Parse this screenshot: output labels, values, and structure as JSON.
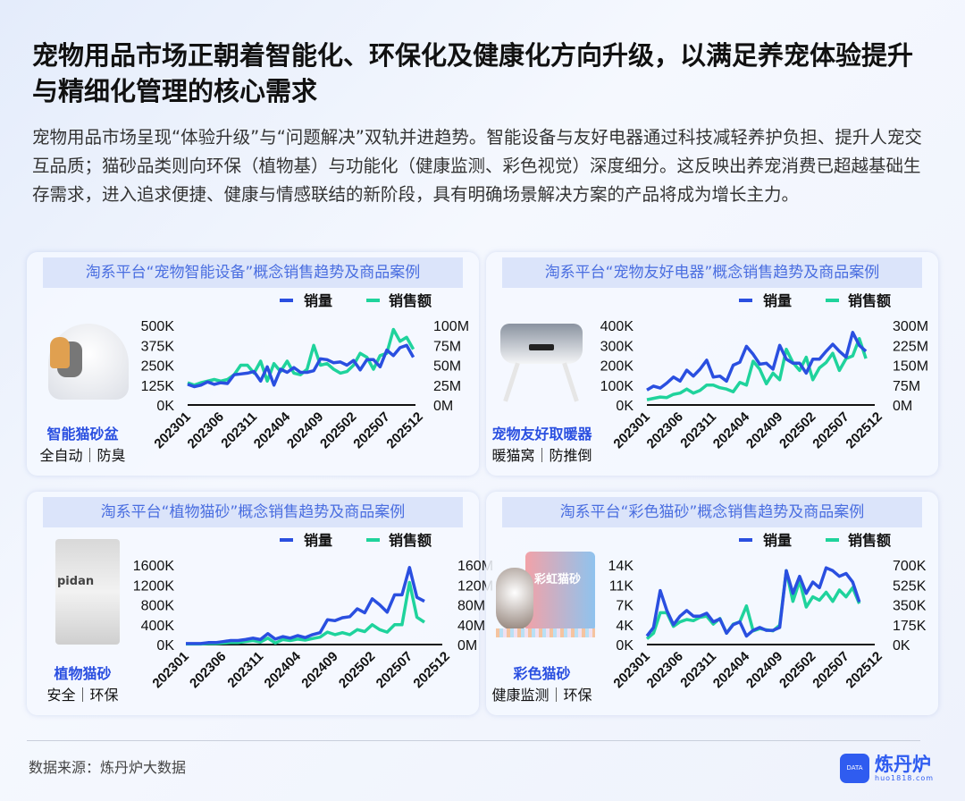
{
  "headline": "宠物用品市场正朝着智能化、环保化及健康化方向升级，以满足养宠体验提升与精细化管理的核心需求",
  "summary": "宠物用品市场呈现“体验升级”与“问题解决”双轨并进趋势。智能设备与友好电器通过科技减轻养护负担、提升人宠交互品质；猫砂品类则向环保（植物基）与功能化（健康监测、彩色视觉）深度细分。这反映出养宠消费已超越基础生存需求，进入追求便捷、健康与情感联结的新阶段，具有明确场景解决方案的产品将成为增长主力。",
  "footer": {
    "source": "数据来源：炼丹炉大数据",
    "logo_name": "炼丹炉",
    "logo_url": "huo1818.com",
    "logo_badge": "DATA"
  },
  "colors": {
    "volume": "#2a4fe0",
    "amount": "#1fd39c"
  },
  "chart_data": [
    {
      "type": "line",
      "title": "淘系平台“宠物智能设备”概念销售趋势及商品案例",
      "product": {
        "name": "智能猫砂盆",
        "tags": "全自动｜防臭"
      },
      "legend": [
        "销量",
        "销售额"
      ],
      "x_ticks": [
        "202301",
        "202306",
        "202311",
        "202404",
        "202409",
        "202502",
        "202507",
        "202512"
      ],
      "left_ticks": [
        "0K",
        "125K",
        "250K",
        "375K",
        "500K"
      ],
      "right_ticks": [
        "0M",
        "25M",
        "50M",
        "75M",
        "100M"
      ],
      "ylim_left": [
        0,
        500
      ],
      "ylim_right": [
        0,
        100
      ],
      "series": [
        {
          "name": "销量",
          "unit": "K",
          "values": [
            130,
            115,
            125,
            145,
            130,
            140,
            135,
            190,
            195,
            200,
            210,
            150,
            240,
            125,
            225,
            205,
            235,
            205,
            205,
            215,
            290,
            285,
            265,
            270,
            250,
            280,
            220,
            285,
            285,
            240,
            345,
            310,
            360,
            375,
            300
          ]
        },
        {
          "name": "销售额",
          "unit": "M",
          "values": [
            28,
            25,
            28,
            30,
            32,
            30,
            32,
            38,
            50,
            50,
            40,
            55,
            30,
            52,
            42,
            55,
            40,
            38,
            45,
            75,
            50,
            52,
            45,
            40,
            42,
            50,
            65,
            60,
            45,
            62,
            65,
            95,
            80,
            85,
            70
          ]
        }
      ]
    },
    {
      "type": "line",
      "title": "淘系平台“宠物友好电器”概念销售趋势及商品案例",
      "product": {
        "name": "宠物友好取暖器",
        "tags": "暖猫窝｜防推倒"
      },
      "legend": [
        "销量",
        "销售额"
      ],
      "x_ticks": [
        "202301",
        "202306",
        "202311",
        "202404",
        "202409",
        "202502",
        "202507",
        "202512"
      ],
      "left_ticks": [
        "0K",
        "100K",
        "200K",
        "300K",
        "400K"
      ],
      "right_ticks": [
        "0M",
        "75M",
        "150M",
        "225M",
        "300M"
      ],
      "ylim_left": [
        0,
        400
      ],
      "ylim_right": [
        0,
        300
      ],
      "series": [
        {
          "name": "销量",
          "unit": "K",
          "values": [
            75,
            95,
            85,
            110,
            140,
            120,
            175,
            145,
            180,
            225,
            140,
            145,
            120,
            200,
            215,
            295,
            255,
            205,
            210,
            180,
            300,
            230,
            210,
            210,
            160,
            230,
            230,
            270,
            305,
            270,
            240,
            365,
            300,
            270
          ]
        },
        {
          "name": "销售额",
          "unit": "M",
          "values": [
            20,
            25,
            30,
            28,
            40,
            45,
            60,
            45,
            55,
            75,
            75,
            65,
            60,
            50,
            85,
            75,
            165,
            135,
            80,
            120,
            95,
            210,
            160,
            130,
            180,
            95,
            140,
            160,
            195,
            130,
            175,
            185,
            250,
            175
          ]
        }
      ]
    },
    {
      "type": "line",
      "title": "淘系平台“植物猫砂”概念销售趋势及商品案例",
      "product": {
        "name": "植物猫砂",
        "tags": "安全｜环保"
      },
      "legend": [
        "销量",
        "销售额"
      ],
      "x_ticks": [
        "202301",
        "202306",
        "202311",
        "202404",
        "202409",
        "202502",
        "202507",
        "202512"
      ],
      "left_ticks": [
        "0K",
        "400K",
        "800K",
        "1200K",
        "1600K"
      ],
      "right_ticks": [
        "0M",
        "40M",
        "80M",
        "120M",
        "160M"
      ],
      "ylim_left": [
        0,
        1600
      ],
      "ylim_right": [
        0,
        160
      ],
      "series": [
        {
          "name": "销量",
          "unit": "K",
          "values": [
            20,
            20,
            20,
            40,
            40,
            60,
            80,
            80,
            100,
            130,
            100,
            220,
            110,
            160,
            130,
            180,
            140,
            200,
            240,
            500,
            480,
            540,
            560,
            720,
            640,
            920,
            800,
            650,
            1000,
            1000,
            1550,
            950,
            870
          ]
        },
        {
          "name": "销售额",
          "unit": "M",
          "values": [
            1,
            1,
            1,
            2,
            2,
            3,
            4,
            4,
            6,
            8,
            5,
            13,
            3,
            10,
            8,
            11,
            9,
            12,
            15,
            25,
            20,
            24,
            20,
            30,
            26,
            40,
            30,
            25,
            40,
            40,
            125,
            55,
            45
          ]
        }
      ]
    },
    {
      "type": "line",
      "title": "淘系平台“彩色猫砂”概念销售趋势及商品案例",
      "product": {
        "name": "彩色猫砂",
        "tags": "健康监测｜环保"
      },
      "legend": [
        "销量",
        "销售额"
      ],
      "x_ticks": [
        "202301",
        "202306",
        "202311",
        "202404",
        "202409",
        "202502",
        "202507",
        "202512"
      ],
      "left_ticks": [
        "0K",
        "4K",
        "7K",
        "11K",
        "14K"
      ],
      "right_ticks": [
        "0K",
        "175K",
        "350K",
        "525K",
        "700K"
      ],
      "ylim_left": [
        0,
        14
      ],
      "ylim_right": [
        0,
        700
      ],
      "series": [
        {
          "name": "销量",
          "unit": "K",
          "values": [
            1.5,
            3,
            9.5,
            6,
            3.5,
            5,
            6,
            5,
            5,
            5.5,
            4,
            4.5,
            2,
            3.5,
            4,
            1.5,
            2.5,
            3,
            2.5,
            2.5,
            3,
            13,
            9,
            12,
            9,
            11,
            10,
            13.5,
            13,
            12,
            12.5,
            11,
            7.5
          ]
        },
        {
          "name": "销售额",
          "unit": "K",
          "values": [
            50,
            100,
            280,
            280,
            160,
            200,
            220,
            210,
            240,
            250,
            180,
            230,
            100,
            180,
            200,
            340,
            120,
            140,
            130,
            120,
            170,
            650,
            380,
            560,
            330,
            420,
            390,
            460,
            380,
            480,
            420,
            500,
            360
          ]
        }
      ]
    }
  ]
}
